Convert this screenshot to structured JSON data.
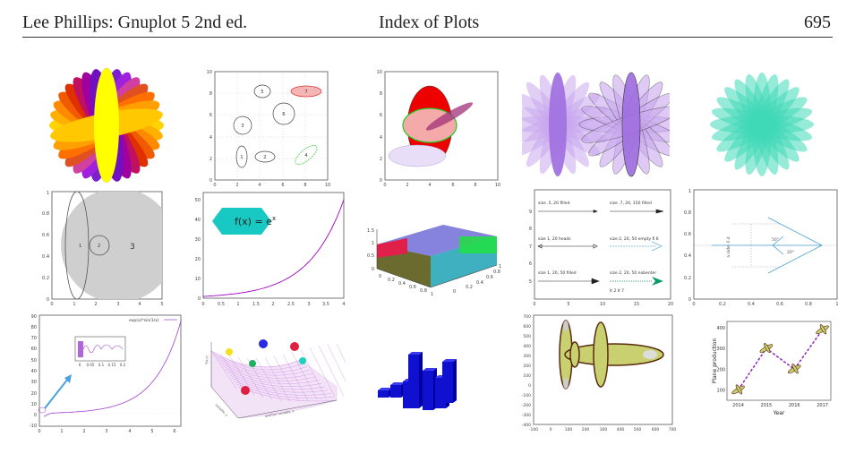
{
  "header": {
    "left": "Lee Phillips: Gnuplot 5 2nd ed.",
    "center": "Index of Plots",
    "page": "695"
  },
  "ellipse_grid": {
    "x_ticks": [
      "0",
      "2",
      "4",
      "6",
      "8",
      "10"
    ],
    "y_ticks": [
      "0",
      "2",
      "4",
      "6",
      "8",
      "10"
    ],
    "labels": [
      "1",
      "2",
      "3",
      "4",
      "5",
      "6",
      "7"
    ]
  },
  "overlap_plot": {
    "x_ticks": [
      "0",
      "2",
      "4",
      "6",
      "8",
      "10"
    ],
    "y_ticks": [
      "0",
      "2",
      "4",
      "6",
      "8",
      "10"
    ]
  },
  "circles_plot": {
    "x_ticks": [
      "0",
      "1",
      "2",
      "3",
      "4",
      "5"
    ],
    "y_ticks": [
      "0",
      "0.2",
      "0.4",
      "0.6",
      "0.8",
      "1"
    ],
    "labels": [
      "1",
      "2",
      "3"
    ]
  },
  "exp_plot": {
    "formula": "f(x) = e",
    "sup": "x",
    "x_ticks": [
      "0",
      "0.5",
      "1",
      "1.5",
      "2",
      "2.5",
      "3",
      "3.5",
      "4"
    ],
    "y_ticks": [
      "0",
      "10",
      "20",
      "30",
      "40",
      "50"
    ]
  },
  "box3d": {
    "z_ticks": [
      "0",
      "0.5",
      "1",
      "1.5"
    ],
    "x_ticks": [
      "0",
      "0.2",
      "0.4",
      "0.6",
      "0.8",
      "1"
    ],
    "y_ticks": [
      "0",
      "0.2",
      "0.4",
      "0.6",
      "0.8",
      "1"
    ]
  },
  "arrows_plot": {
    "labels": [
      "size .5, 20 filled",
      "size .7, 20, 150 filled",
      "size 1, 20 heads",
      "size 2, 20, 50 empty fi 6",
      "size 1, 20, 50 filled",
      "size 2, 20, 50 nobenter",
      "lt 2 lt 7"
    ],
    "x_ticks": [
      "0",
      "5",
      "10",
      "15",
      "20"
    ],
    "y_ticks": [
      "5",
      "6",
      "7",
      "8",
      "9"
    ]
  },
  "angle_plot": {
    "x_ticks": [
      "0",
      "0.2",
      "0.4",
      "0.6",
      "0.8",
      "1"
    ],
    "y_ticks": [
      "0",
      "0.2",
      "0.4",
      "0.6",
      "0.8",
      "1"
    ],
    "angle1": "50°",
    "angle2": "20°",
    "side": "a side: 0.4"
  },
  "exp_sin_plot": {
    "legend": "exp(x)*sin(1/x)",
    "x_ticks": [
      "0",
      "1",
      "2",
      "3",
      "4",
      "5",
      "6"
    ],
    "y_ticks": [
      "-10",
      "0",
      "10",
      "20",
      "30",
      "40",
      "50",
      "60",
      "70",
      "80",
      "90"
    ],
    "inset_x_ticks": [
      "0",
      "0.05",
      "0.1",
      "0.15",
      "0.2"
    ]
  },
  "surface_plot": {
    "axis_z": "F(x,y)",
    "axis_x": "another variable, x",
    "axis_y": "variable, y"
  },
  "airplane_plot": {
    "x_ticks": [
      "-100",
      "0",
      "100",
      "200",
      "300",
      "400",
      "500",
      "600",
      "700"
    ],
    "y_ticks": [
      "-400",
      "-300",
      "-200",
      "-100",
      "0",
      "100",
      "200",
      "300",
      "400",
      "500",
      "600",
      "700"
    ]
  },
  "plane_production": {
    "ylabel": "Plane production",
    "xlabel": "Year",
    "x_ticks": [
      "2014",
      "2015",
      "2016",
      "2017"
    ],
    "y_ticks": [
      "100",
      "200",
      "300",
      "400"
    ]
  },
  "chart_data": {
    "type": "line",
    "x": [
      2014,
      2015,
      2016,
      2017
    ],
    "values": [
      100,
      300,
      200,
      390
    ],
    "xlabel": "Year",
    "ylabel": "Plane production",
    "ylim": [
      50,
      430
    ]
  }
}
